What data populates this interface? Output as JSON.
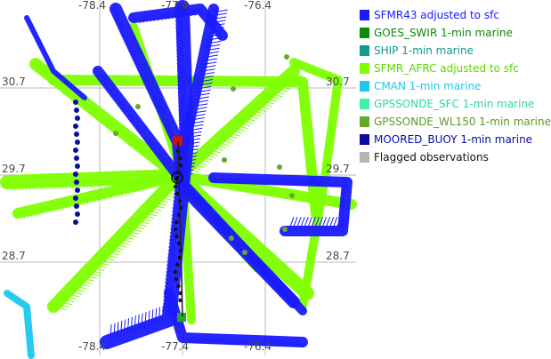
{
  "map": {
    "lon_ticks": [
      {
        "label": "-78.4",
        "value": -78.4
      },
      {
        "label": "-77.4",
        "value": -77.4
      },
      {
        "label": "-76.4",
        "value": -76.4
      }
    ],
    "lat_ticks": [
      {
        "label": "30.7",
        "value": 30.7
      },
      {
        "label": "29.7",
        "value": 29.7
      },
      {
        "label": "28.7",
        "value": 28.7
      }
    ],
    "grid_color": "#b8b8b8"
  },
  "legend": [
    {
      "label": "SFMR43 adjusted to sfc",
      "color": "#1a1aff",
      "text_color": "#1a1aff"
    },
    {
      "label": "GOES_SWIR 1-min marine",
      "color": "#0b8a0b",
      "text_color": "#0b8a0b"
    },
    {
      "label": "SHIP 1-min marine",
      "color": "#0f9b8e",
      "text_color": "#0f9b8e"
    },
    {
      "label": "SFMR_AFRC adjusted to sfc",
      "color": "#7fff00",
      "text_color": "#5fd400"
    },
    {
      "label": "CMAN 1-min marine",
      "color": "#1fc8f0",
      "text_color": "#1fc8f0"
    },
    {
      "label": "GPSSONDE_SFC 1-min marine",
      "color": "#3ef0a8",
      "text_color": "#2fd993"
    },
    {
      "label": "GPSSONDE_WL150 1-min marine",
      "color": "#66a82a",
      "text_color": "#5b9a22"
    },
    {
      "label": "MOORED_BUOY 1-min marine",
      "color": "#0a0aa0",
      "text_color": "#0a0aa0"
    },
    {
      "label": "Flagged observations",
      "color": "#b4b4b4",
      "text_color": "#111111"
    }
  ]
}
